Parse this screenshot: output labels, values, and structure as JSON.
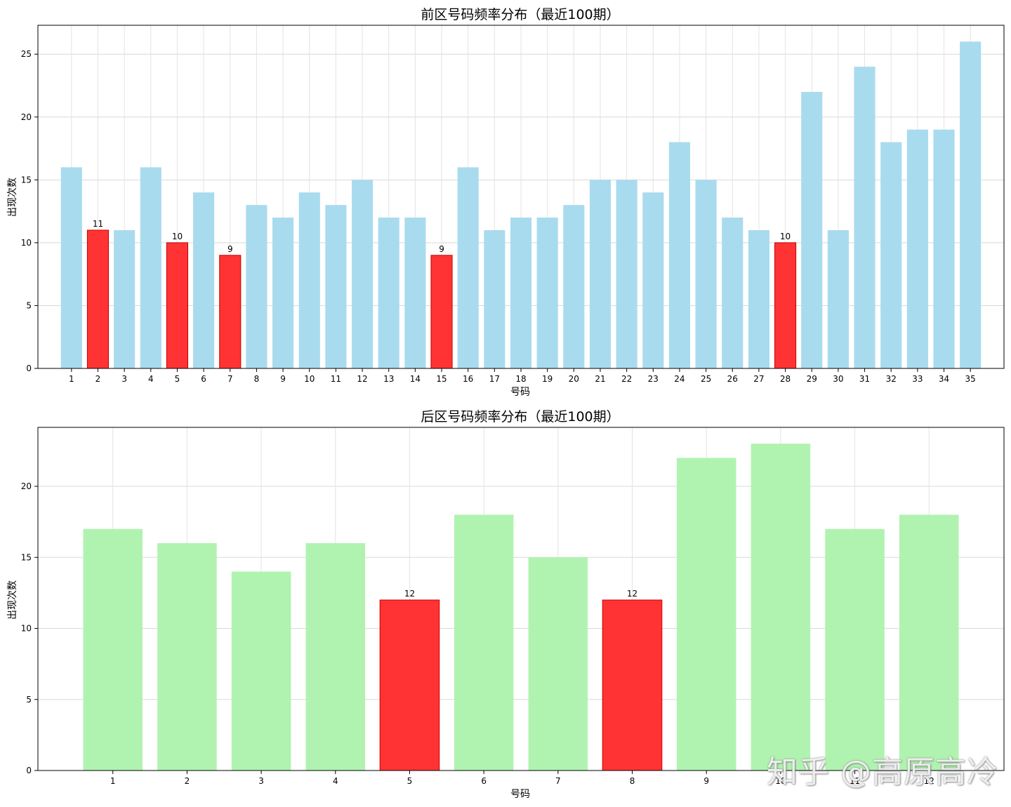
{
  "chart_data": [
    {
      "type": "bar",
      "title": "前区号码频率分布（最近100期）",
      "xlabel": "号码",
      "ylabel": "出现次数",
      "ylim": [
        0,
        27.3
      ],
      "yticks": [
        0,
        5,
        10,
        15,
        20,
        25
      ],
      "grid": true,
      "categories": [
        "1",
        "2",
        "3",
        "4",
        "5",
        "6",
        "7",
        "8",
        "9",
        "10",
        "11",
        "12",
        "13",
        "14",
        "15",
        "16",
        "17",
        "18",
        "19",
        "20",
        "21",
        "22",
        "23",
        "24",
        "25",
        "26",
        "27",
        "28",
        "29",
        "30",
        "31",
        "32",
        "33",
        "34",
        "35"
      ],
      "values": [
        16,
        11,
        11,
        16,
        10,
        14,
        9,
        13,
        12,
        14,
        13,
        15,
        12,
        12,
        9,
        16,
        11,
        12,
        12,
        13,
        15,
        15,
        14,
        18,
        15,
        12,
        11,
        10,
        22,
        11,
        24,
        18,
        19,
        19,
        26
      ],
      "highlighted": [
        "2",
        "5",
        "7",
        "15",
        "28"
      ],
      "colors": {
        "normal": "#a9dbee",
        "highlight": "#ff3333"
      }
    },
    {
      "type": "bar",
      "title": "后区号码频率分布（最近100期）",
      "xlabel": "号码",
      "ylabel": "出现次数",
      "ylim": [
        0,
        24.15
      ],
      "yticks": [
        0,
        5,
        10,
        15,
        20
      ],
      "grid": true,
      "categories": [
        "1",
        "2",
        "3",
        "4",
        "5",
        "6",
        "7",
        "8",
        "9",
        "10",
        "11",
        "12"
      ],
      "values": [
        17,
        16,
        14,
        16,
        12,
        18,
        15,
        12,
        22,
        23,
        17,
        18
      ],
      "highlighted": [
        "5",
        "8"
      ],
      "colors": {
        "normal": "#b0f3b0",
        "highlight": "#ff3333"
      }
    }
  ],
  "watermark": "知乎 @高原高冷"
}
